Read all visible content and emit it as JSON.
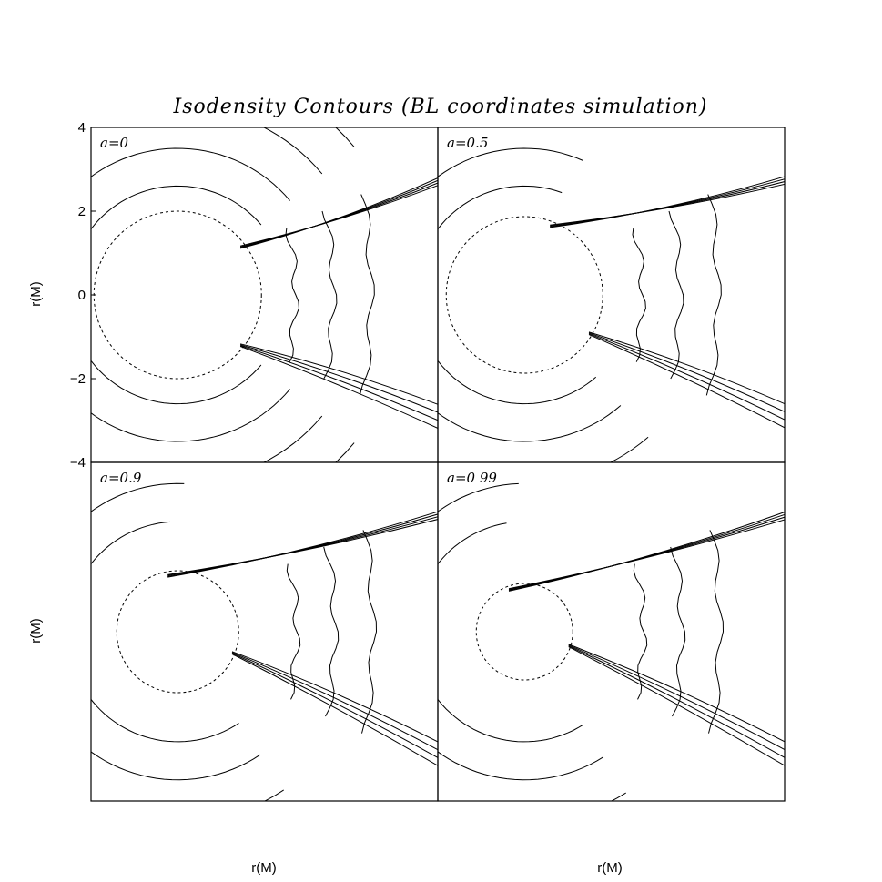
{
  "chart_data": {
    "type": "contour",
    "title": "Isodensity Contours (BL coordinates simulation)",
    "xlabel": "r(M)",
    "ylabel": "r(M)",
    "ylim": [
      -4,
      4
    ],
    "yticks": [
      "4",
      "2",
      "0",
      "−2",
      "−4"
    ],
    "panels": [
      {
        "label": "a=0",
        "spin": 0,
        "horizon_radius": 2.0,
        "shock_angles_deg": [
          38,
          -38
        ]
      },
      {
        "label": "a=0.5",
        "spin": 0.5,
        "horizon_radius": 1.87,
        "shock_angles_deg": [
          70,
          -30
        ]
      },
      {
        "label": "a=0.9",
        "spin": 0.9,
        "horizon_radius": 1.44,
        "shock_angles_deg": [
          100,
          -20
        ]
      },
      {
        "label": "a=0 99",
        "spin": 0.99,
        "horizon_radius": 1.14,
        "shock_angles_deg": [
          110,
          -16
        ]
      }
    ],
    "grid": false
  }
}
